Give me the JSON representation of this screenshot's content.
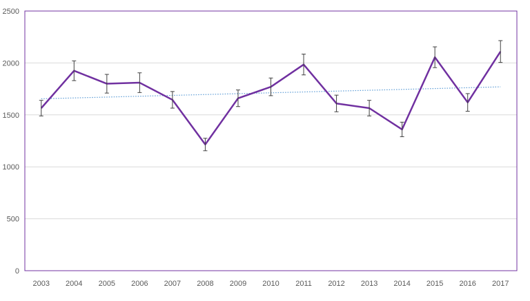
{
  "colors": {
    "series": "#7030A0",
    "trend": "#5B9BD5",
    "error_bars": "#404040",
    "gridlines": "#D9D9D9",
    "frame": "#7030A0",
    "tick_labels": "#595959"
  },
  "chart_data": {
    "type": "line",
    "title": "",
    "xlabel": "",
    "ylabel": "",
    "ylim": [
      0,
      2500
    ],
    "y_ticks": [
      0,
      500,
      1000,
      1500,
      2000,
      2500
    ],
    "grid": "horizontal",
    "legend": "none",
    "categories": [
      "2003",
      "2004",
      "2005",
      "2006",
      "2007",
      "2008",
      "2009",
      "2010",
      "2011",
      "2012",
      "2013",
      "2014",
      "2015",
      "2016",
      "2017"
    ],
    "series": [
      {
        "values": [
          1565,
          1925,
          1800,
          1810,
          1645,
          1215,
          1660,
          1770,
          1985,
          1610,
          1565,
          1360,
          2055,
          1620,
          2110
        ],
        "error_plus_minus": [
          75,
          95,
          90,
          95,
          80,
          60,
          80,
          85,
          100,
          80,
          75,
          70,
          100,
          85,
          105
        ]
      }
    ],
    "trendline": {
      "type": "linear",
      "start": 1655,
      "end": 1770
    }
  }
}
